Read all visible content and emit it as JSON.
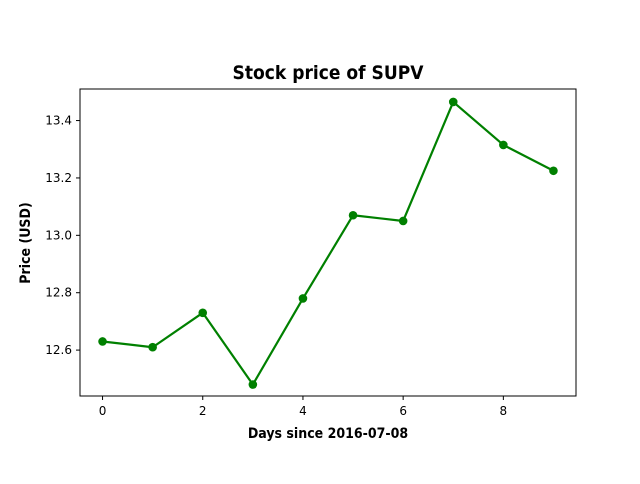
{
  "chart_data": {
    "type": "line",
    "title": "Stock price of SUPV",
    "xlabel": "Days since 2016-07-08",
    "ylabel": "Price (USD)",
    "x": [
      0,
      1,
      2,
      3,
      4,
      5,
      6,
      7,
      8,
      9
    ],
    "series": [
      {
        "values": [
          12.63,
          12.61,
          12.73,
          12.48,
          12.78,
          13.07,
          13.05,
          13.465,
          13.315,
          13.225
        ],
        "color": "#008000",
        "marker": "circle"
      }
    ],
    "xlim": [
      -0.45,
      9.45
    ],
    "ylim": [
      12.44,
      13.51
    ],
    "xticks": [
      0,
      2,
      4,
      6,
      8
    ],
    "xtick_labels": [
      "0",
      "2",
      "4",
      "6",
      "8"
    ],
    "yticks": [
      12.6,
      12.8,
      13.0,
      13.2,
      13.4
    ],
    "ytick_labels": [
      "12.6",
      "12.8",
      "13.0",
      "13.2",
      "13.4"
    ],
    "grid": false,
    "legend": "none"
  }
}
